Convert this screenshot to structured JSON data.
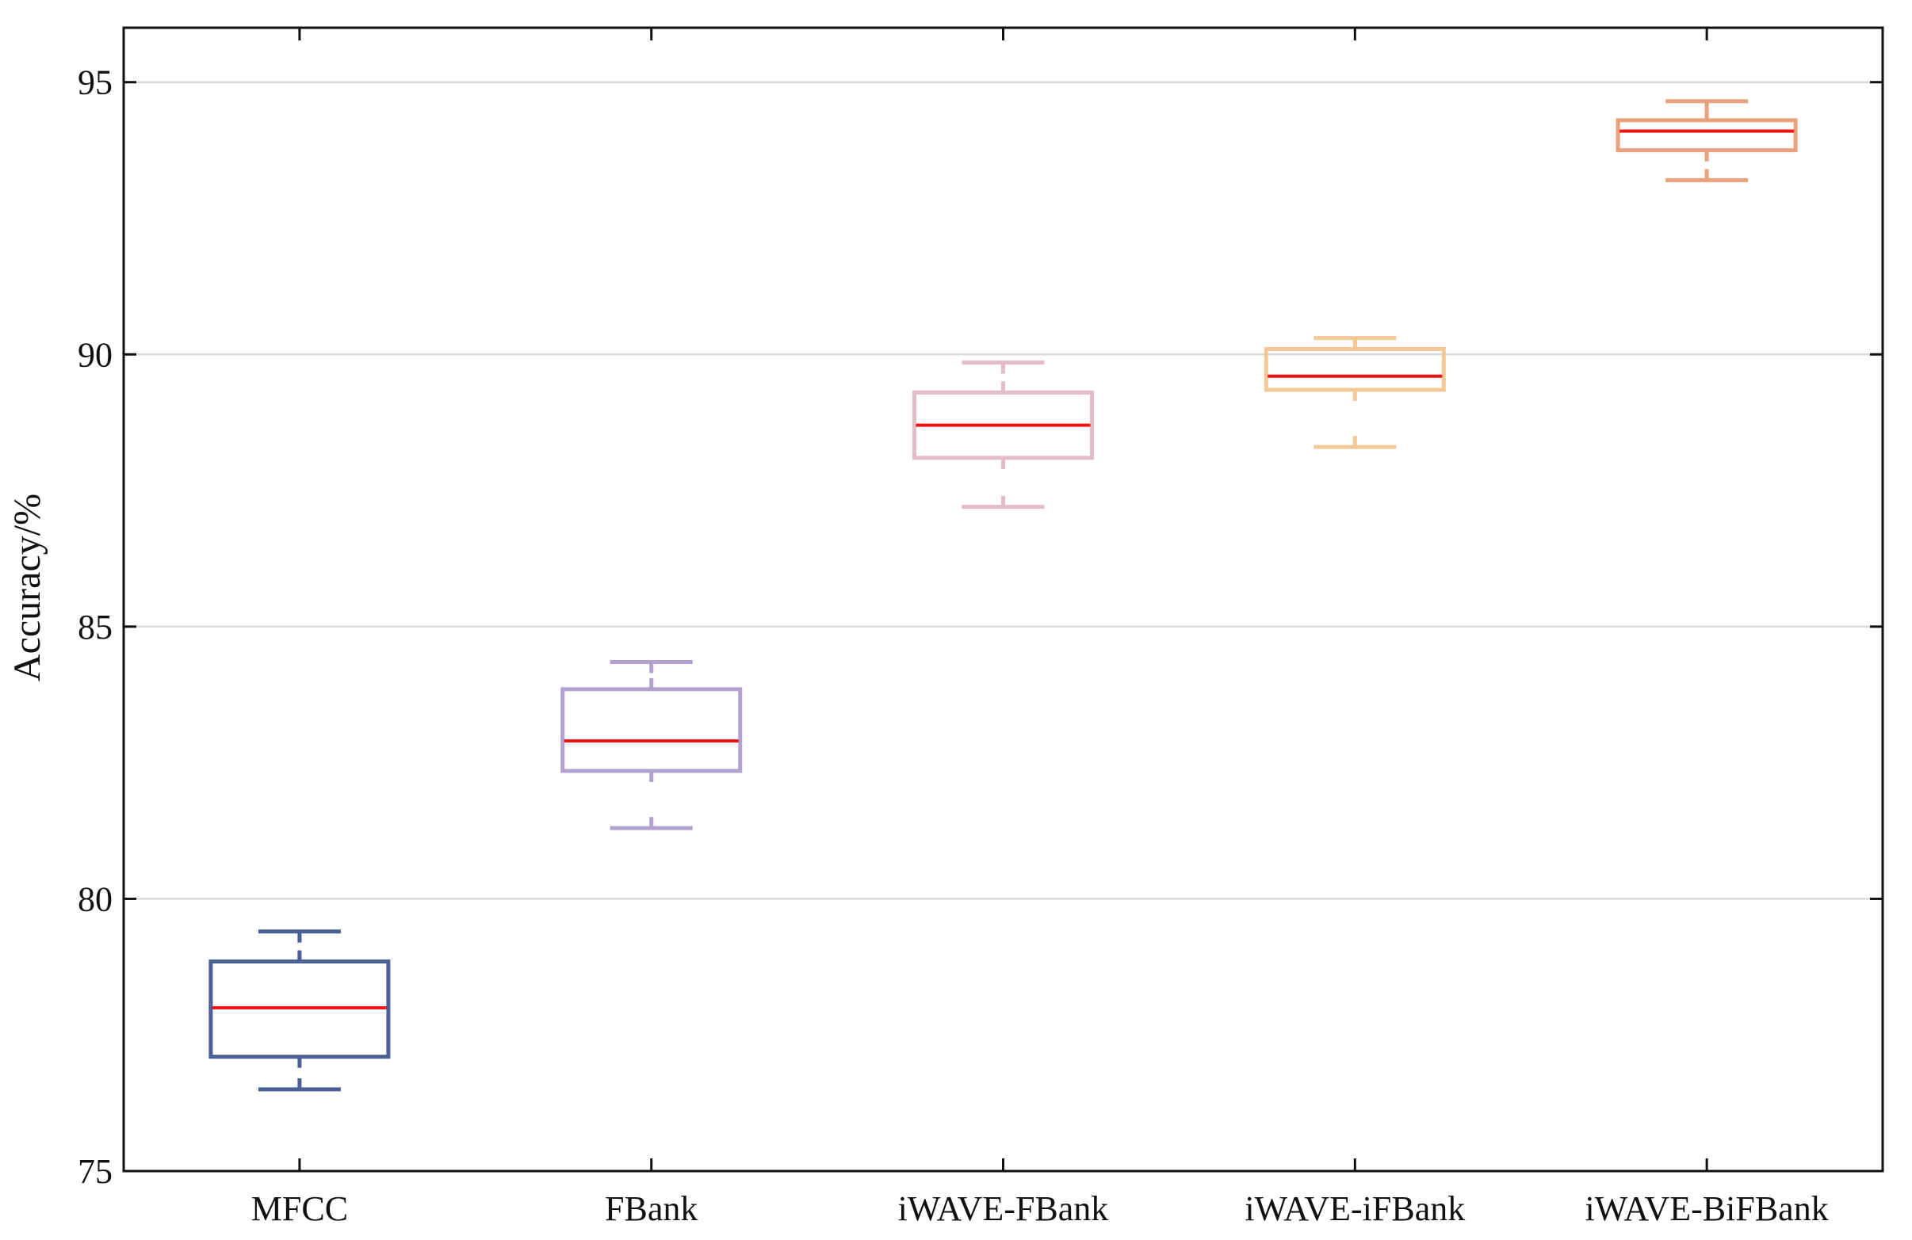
{
  "chart_data": {
    "type": "box",
    "title": "",
    "xlabel": "",
    "ylabel": "Accuracy/%",
    "ylim": [
      75,
      96
    ],
    "yticks": [
      75,
      80,
      85,
      90,
      95
    ],
    "grid": "horizontal",
    "categories": [
      "MFCC",
      "FBank",
      "iWAVE-FBank",
      "iWAVE-iFBank",
      "iWAVE-BiFBank"
    ],
    "series": [
      {
        "name": "MFCC",
        "whisker_low": 76.5,
        "q1": 77.1,
        "median": 78.0,
        "q3": 78.85,
        "whisker_high": 79.4,
        "color": "#4a5f96"
      },
      {
        "name": "FBank",
        "whisker_low": 81.3,
        "q1": 82.35,
        "median": 82.9,
        "q3": 83.85,
        "whisker_high": 84.35,
        "color": "#b3a2cf"
      },
      {
        "name": "iWAVE-FBank",
        "whisker_low": 87.2,
        "q1": 88.1,
        "median": 88.7,
        "q3": 89.3,
        "whisker_high": 89.85,
        "color": "#e4bcc8"
      },
      {
        "name": "iWAVE-iFBank",
        "whisker_low": 88.3,
        "q1": 89.35,
        "median": 89.6,
        "q3": 90.1,
        "whisker_high": 90.3,
        "color": "#f4c896"
      },
      {
        "name": "iWAVE-BiFBank",
        "whisker_low": 93.2,
        "q1": 93.75,
        "median": 94.1,
        "q3": 94.3,
        "whisker_high": 94.65,
        "color": "#eaa07c"
      }
    ],
    "median_color": "#ee1111"
  }
}
